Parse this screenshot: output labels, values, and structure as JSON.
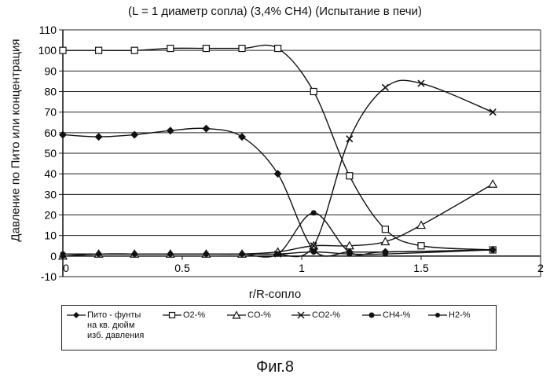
{
  "chart_data": {
    "type": "line",
    "title": "(L = 1 диаметр сопла) (3,4% CH4) (Испытание в печи)",
    "xlabel": "r/R-сопло",
    "ylabel": "Давление по Пито или концентрация",
    "xlim": [
      0,
      2
    ],
    "ylim": [
      -10,
      110
    ],
    "x_ticks": [
      "0",
      "0.5",
      "1",
      "1.5",
      "2"
    ],
    "y_ticks": [
      "-10",
      "0",
      "10",
      "20",
      "30",
      "40",
      "50",
      "60",
      "70",
      "80",
      "90",
      "100",
      "110"
    ],
    "grid": "horizontal",
    "legend_position": "bottom",
    "series": [
      {
        "name": "Пито - фунты на кв. дюйм изб. давления",
        "marker": "diamond",
        "x": [
          0,
          0.15,
          0.3,
          0.45,
          0.6,
          0.75,
          0.9,
          1.05,
          1.2,
          1.35,
          1.8
        ],
        "y": [
          59,
          58,
          59,
          61,
          62,
          58,
          40,
          3,
          2,
          2,
          3
        ]
      },
      {
        "name": "O2-%",
        "marker": "square",
        "x": [
          0,
          0.15,
          0.3,
          0.45,
          0.6,
          0.75,
          0.9,
          1.05,
          1.2,
          1.35,
          1.5,
          1.8
        ],
        "y": [
          100,
          100,
          100,
          101,
          101,
          101,
          101,
          80,
          39,
          13,
          5,
          3
        ]
      },
      {
        "name": "CO-%",
        "marker": "triangle",
        "x": [
          0,
          0.15,
          0.3,
          0.45,
          0.6,
          0.75,
          0.9,
          1.05,
          1.2,
          1.35,
          1.5,
          1.8
        ],
        "y": [
          0,
          1,
          1,
          1,
          1,
          1,
          2,
          5,
          5,
          7,
          15,
          35
        ]
      },
      {
        "name": "CO2-%",
        "marker": "cross",
        "x": [
          0.9,
          1.05,
          1.2,
          1.35,
          1.5,
          1.8
        ],
        "y": [
          1,
          5,
          57,
          82,
          84,
          70
        ]
      },
      {
        "name": "CH4-%",
        "marker": "circle",
        "x": [
          0,
          0.15,
          0.3,
          0.45,
          0.6,
          0.75,
          0.9,
          1.05,
          1.2,
          1.35,
          1.8
        ],
        "y": [
          1,
          1,
          1,
          1,
          1,
          1,
          1,
          21,
          2,
          2,
          3
        ]
      },
      {
        "name": "H2-%",
        "marker": "circle",
        "x": [
          0,
          0.15,
          0.3,
          0.45,
          0.6,
          0.75,
          0.9,
          1.05,
          1.2,
          1.35,
          1.8
        ],
        "y": [
          0,
          1,
          1,
          1,
          1,
          1,
          1,
          2,
          1,
          1,
          3
        ]
      }
    ]
  },
  "legend": {
    "pito_line1": "Пито - фунты",
    "pito_line2": "на кв. дюйм",
    "pito_line3": "изб. давления",
    "o2": "O2-%",
    "co": "CO-%",
    "co2": "CO2-%",
    "ch4": "CH4-%",
    "h2": "H2-%"
  },
  "caption": "Фиг.8"
}
